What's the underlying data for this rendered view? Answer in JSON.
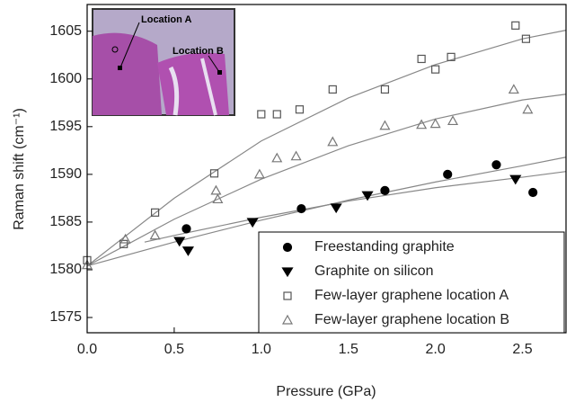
{
  "chart_data": {
    "type": "scatter",
    "xlabel": "Pressure (GPa)",
    "ylabel": "Raman shift (cm⁻¹)",
    "xlim": [
      0,
      2.75
    ],
    "ylim": [
      1573.4,
      1607.8
    ],
    "xticks": [
      {
        "value": 0,
        "label": "0.0"
      },
      {
        "value": 0.5,
        "label": "0.5"
      },
      {
        "value": 1,
        "label": "1.0"
      },
      {
        "value": 1.5,
        "label": "1.5"
      },
      {
        "value": 2,
        "label": "2.0"
      },
      {
        "value": 2.5,
        "label": "2.5"
      }
    ],
    "yticks": [
      1575,
      1580,
      1585,
      1590,
      1595,
      1600,
      1605
    ],
    "legend": "lower right",
    "series": [
      {
        "name": "Freestanding graphite",
        "marker": "circle",
        "color": "#000000",
        "filled": true,
        "x": [
          0.57,
          1.23,
          1.71,
          2.07,
          2.35,
          2.56
        ],
        "values": [
          1584.3,
          1586.4,
          1588.3,
          1590,
          1591,
          1588.1
        ]
      },
      {
        "name": "Graphite on silicon",
        "marker": "triangle-down",
        "color": "#000000",
        "filled": true,
        "x": [
          0.53,
          0.58,
          0.95,
          1.43,
          1.61,
          2.46
        ],
        "values": [
          1583,
          1582,
          1585,
          1586.5,
          1587.8,
          1589.5
        ]
      },
      {
        "name": "Few-layer graphene location A",
        "marker": "square",
        "color": "#555555",
        "filled": false,
        "x": [
          0,
          0.21,
          0.39,
          0.73,
          1,
          1.09,
          1.22,
          1.41,
          1.71,
          1.92,
          2,
          2.09,
          2.46,
          2.52
        ],
        "values": [
          1581,
          1582.7,
          1586,
          1590.1,
          1596.3,
          1596.3,
          1596.8,
          1598.9,
          1598.9,
          1602.1,
          1601,
          1602.3,
          1605.6,
          1604.2
        ]
      },
      {
        "name": "Few-layer graphene location B",
        "marker": "triangle-up",
        "color": "#777777",
        "filled": false,
        "x": [
          0,
          0.22,
          0.39,
          0.74,
          0.75,
          0.99,
          1.09,
          1.2,
          1.41,
          1.71,
          1.92,
          2,
          2.1,
          2.45,
          2.53
        ],
        "values": [
          1580.5,
          1583.2,
          1583.6,
          1588.3,
          1587.4,
          1590,
          1591.7,
          1591.9,
          1593.4,
          1595.1,
          1595.2,
          1595.3,
          1595.6,
          1598.9,
          1596.8
        ]
      }
    ],
    "fit_lines": [
      {
        "color": "#888888",
        "x": [
          0,
          0.5,
          1,
          1.5,
          2,
          2.5,
          2.75
        ],
        "values": [
          1580.4,
          1587.5,
          1593.5,
          1598,
          1601.5,
          1604.2,
          1605.1
        ]
      },
      {
        "color": "#888888",
        "x": [
          0,
          0.5,
          1,
          1.5,
          2,
          2.5,
          2.75
        ],
        "values": [
          1580.4,
          1585.3,
          1589.5,
          1593,
          1595.8,
          1597.8,
          1598.4
        ]
      },
      {
        "color": "#888888",
        "x": [
          0,
          0.5,
          1,
          1.5,
          2,
          2.5,
          2.75
        ],
        "values": [
          1580.4,
          1582.9,
          1585.2,
          1587.3,
          1589.2,
          1590.9,
          1591.8
        ]
      },
      {
        "color": "#888888",
        "x": [
          0.33,
          0.5,
          1,
          1.5,
          2,
          2.5,
          2.75
        ],
        "values": [
          1582.9,
          1583.6,
          1585.5,
          1587.2,
          1588.6,
          1589.7,
          1590.3
        ]
      }
    ],
    "inset": {
      "labels": [
        "Location A",
        "Location B"
      ]
    }
  }
}
